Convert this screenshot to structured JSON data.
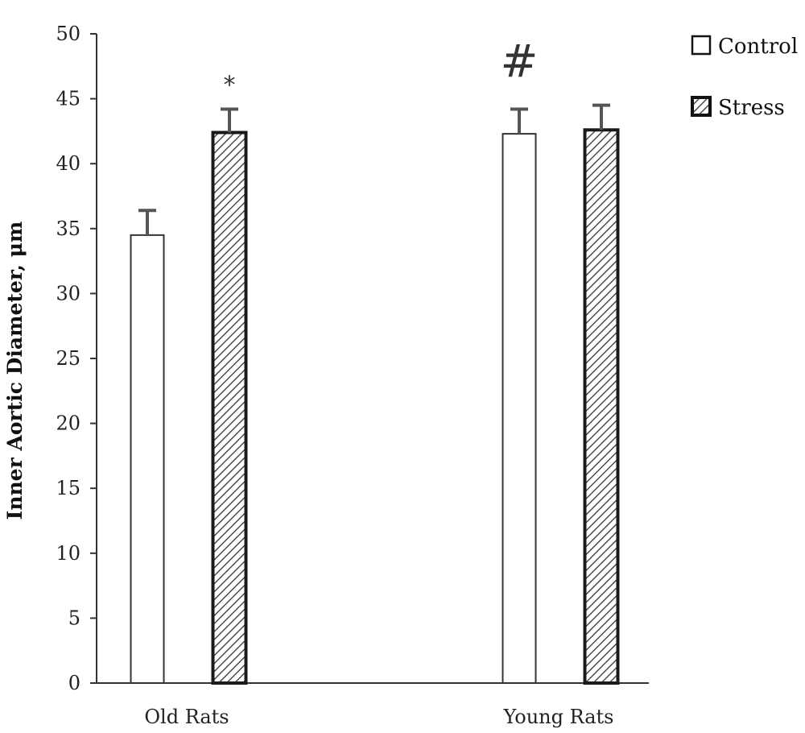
{
  "chart_data": {
    "type": "bar",
    "ylabel": "Inner Aortic Diameter, μm",
    "xlabel": "",
    "ylim": [
      0,
      50
    ],
    "yticks": [
      0,
      5,
      10,
      15,
      20,
      25,
      30,
      35,
      40,
      45,
      50
    ],
    "categories": [
      "Old Rats",
      "Young Rats"
    ],
    "series": [
      {
        "name": "Control",
        "values": [
          34.5,
          42.3
        ],
        "errors": [
          1.9,
          1.9
        ],
        "color": "#ffffff",
        "pattern": "none"
      },
      {
        "name": "Stress",
        "values": [
          42.4,
          42.6
        ],
        "errors": [
          1.8,
          1.9
        ],
        "color": "#ffffff",
        "pattern": "diagonal-hatch"
      }
    ],
    "annotations": [
      {
        "text": "*",
        "category": "Old Rats",
        "series": "Stress"
      },
      {
        "text": "#",
        "category": "Young Rats",
        "series": "Control"
      }
    ],
    "legend": {
      "position": "top-right"
    },
    "grid": false
  }
}
